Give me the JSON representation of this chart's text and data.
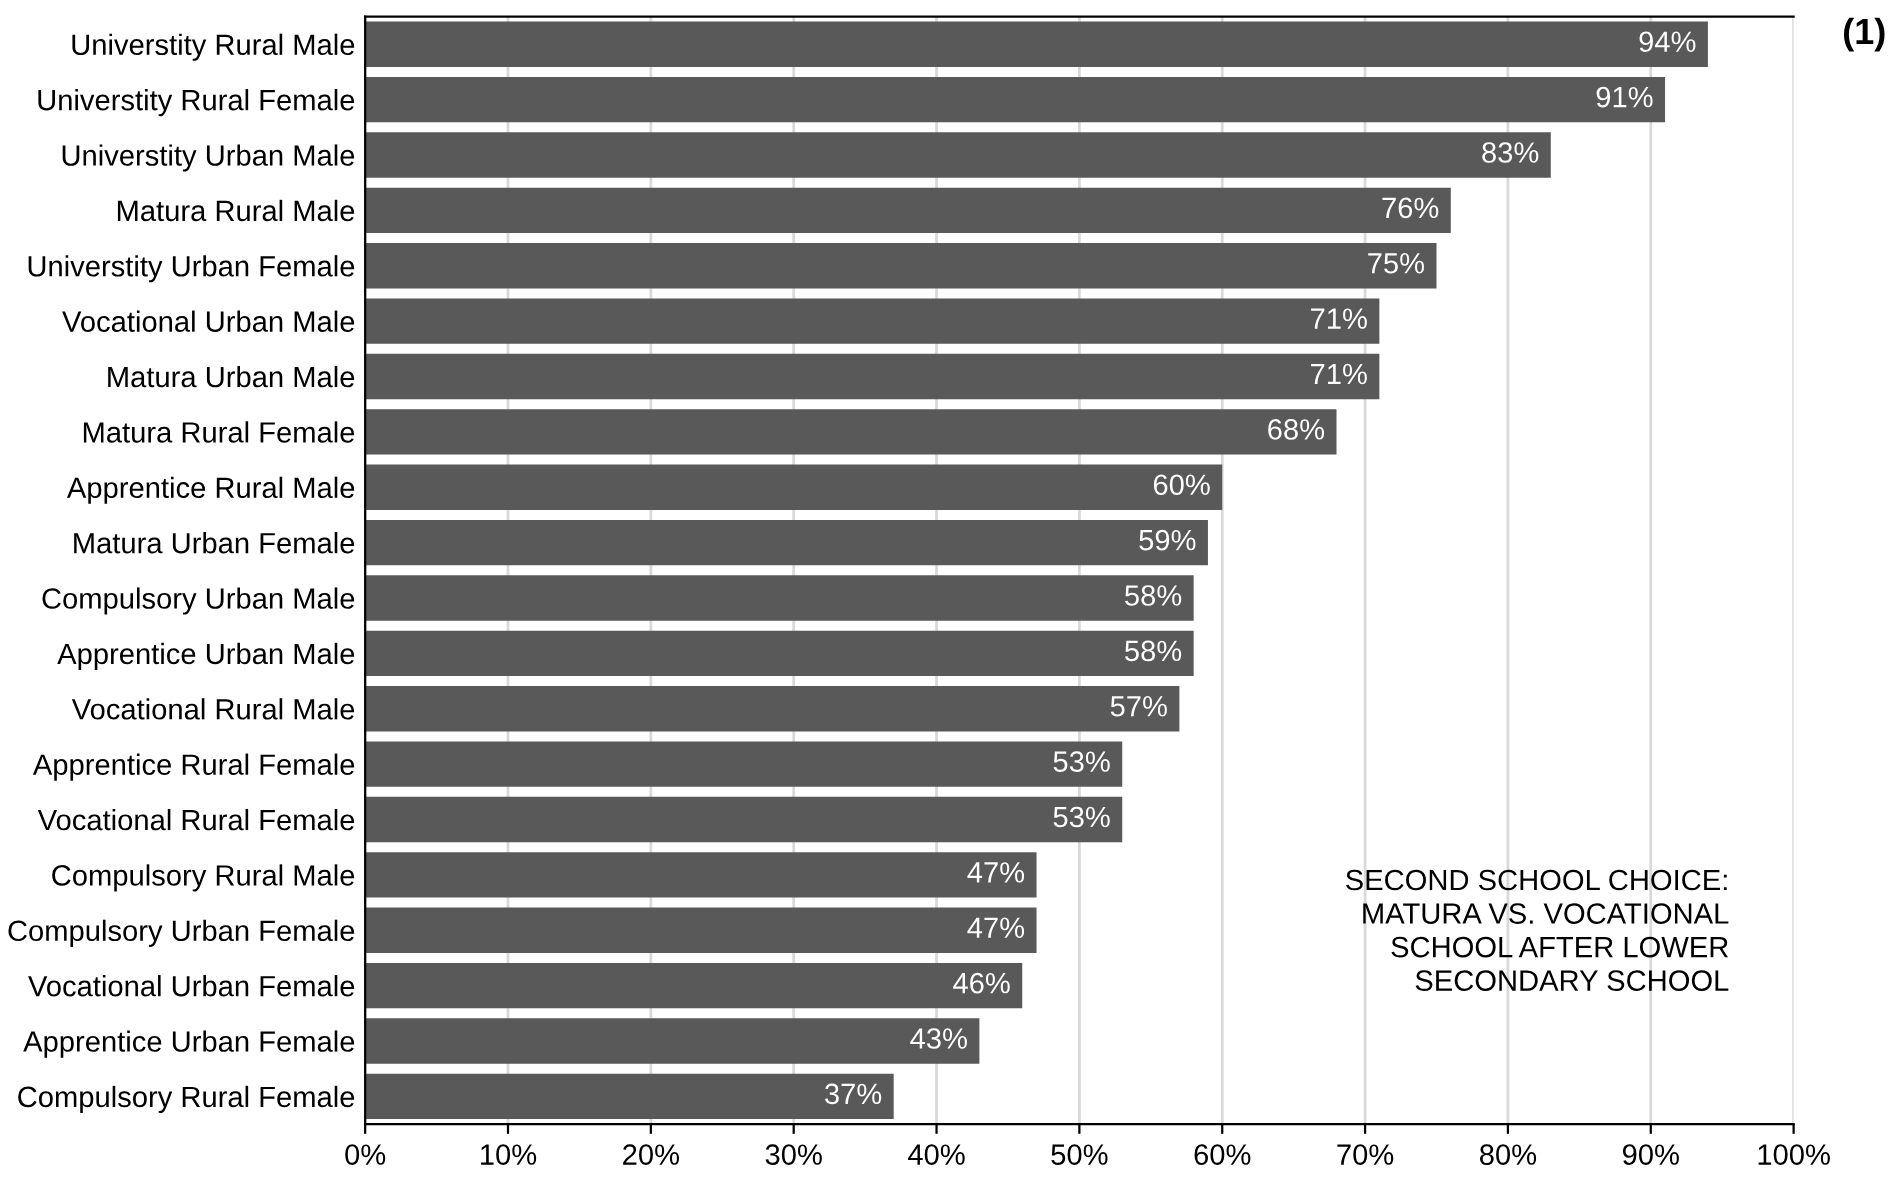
{
  "chart_data": {
    "type": "bar",
    "orientation": "horizontal",
    "categories": [
      "Universtity Rural Male",
      "Universtity Rural Female",
      "Universtity Urban Male",
      "Matura Rural Male",
      "Universtity Urban Female",
      "Vocational Urban Male",
      "Matura Urban Male",
      "Matura Rural Female",
      "Apprentice Rural Male",
      "Matura Urban Female",
      "Compulsory Urban Male",
      "Apprentice Urban Male",
      "Vocational Rural Male",
      "Apprentice Rural Female",
      "Vocational Rural Female",
      "Compulsory Rural Male",
      "Compulsory Urban Female",
      "Vocational Urban Female",
      "Apprentice Urban Female",
      "Compulsory Rural Female"
    ],
    "values": [
      94,
      91,
      83,
      76,
      75,
      71,
      71,
      68,
      60,
      59,
      58,
      58,
      57,
      53,
      53,
      47,
      47,
      46,
      43,
      37
    ],
    "value_labels": [
      "94%",
      "91%",
      "83%",
      "76%",
      "75%",
      "71%",
      "71%",
      "68%",
      "60%",
      "59%",
      "58%",
      "58%",
      "57%",
      "53%",
      "53%",
      "47%",
      "47%",
      "46%",
      "43%",
      "37%"
    ],
    "color": "#595959",
    "xlim": [
      0,
      100
    ],
    "xticks": [
      {
        "value": 0,
        "label": "0%"
      },
      {
        "value": 10,
        "label": "10%"
      },
      {
        "value": 20,
        "label": "20%"
      },
      {
        "value": 30,
        "label": "30%"
      },
      {
        "value": 40,
        "label": "40%"
      },
      {
        "value": 50,
        "label": "50%"
      },
      {
        "value": 60,
        "label": "60%"
      },
      {
        "value": 70,
        "label": "70%"
      },
      {
        "value": 80,
        "label": "80%"
      },
      {
        "value": 90,
        "label": "90%"
      },
      {
        "value": 100,
        "label": "100%"
      }
    ],
    "grid": "x",
    "legend": false,
    "annotations": [
      "SECOND SCHOOL CHOICE:\nMATURA VS. VOCATIONAL\nSCHOOL AFTER LOWER\nSECONDARY SCHOOL",
      "(1)"
    ]
  }
}
